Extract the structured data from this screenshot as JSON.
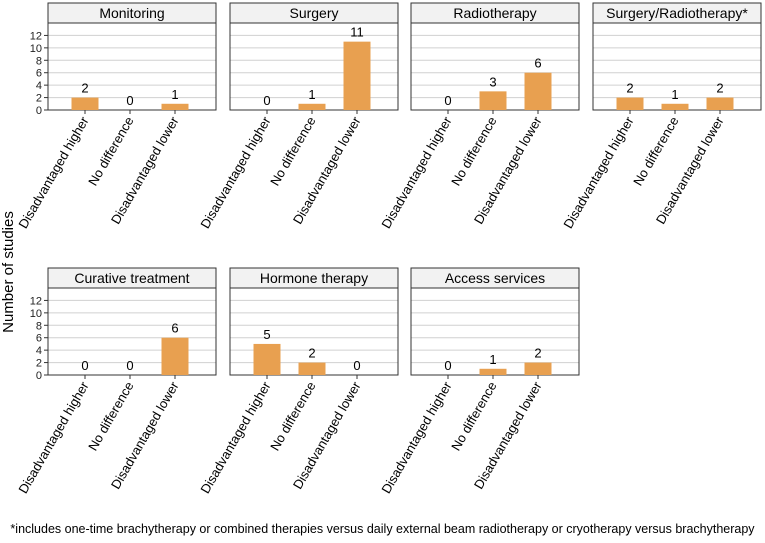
{
  "chart_data": {
    "type": "bar",
    "ylabel": "Number of studies",
    "ylim": [
      0,
      14
    ],
    "yticks": [
      0,
      2,
      4,
      6,
      8,
      10,
      12
    ],
    "bar_color": "#e8a050",
    "categories": [
      "Disadvantaged higher",
      "No difference",
      "Disadvantaged lower"
    ],
    "panels": [
      {
        "title": "Monitoring",
        "values": [
          2,
          0,
          1
        ]
      },
      {
        "title": "Surgery",
        "values": [
          0,
          1,
          11
        ]
      },
      {
        "title": "Radiotherapy",
        "values": [
          0,
          3,
          6
        ]
      },
      {
        "title": "Surgery/Radiotherapy*",
        "values": [
          2,
          1,
          2
        ]
      },
      {
        "title": "Curative treatment",
        "values": [
          0,
          0,
          6
        ]
      },
      {
        "title": "Hormone therapy",
        "values": [
          5,
          2,
          0
        ]
      },
      {
        "title": "Access services",
        "values": [
          0,
          1,
          2
        ]
      }
    ],
    "footnote": "*includes one-time brachytherapy or combined therapies versus daily external beam radiotherapy or cryotherapy versus brachytherapy"
  }
}
